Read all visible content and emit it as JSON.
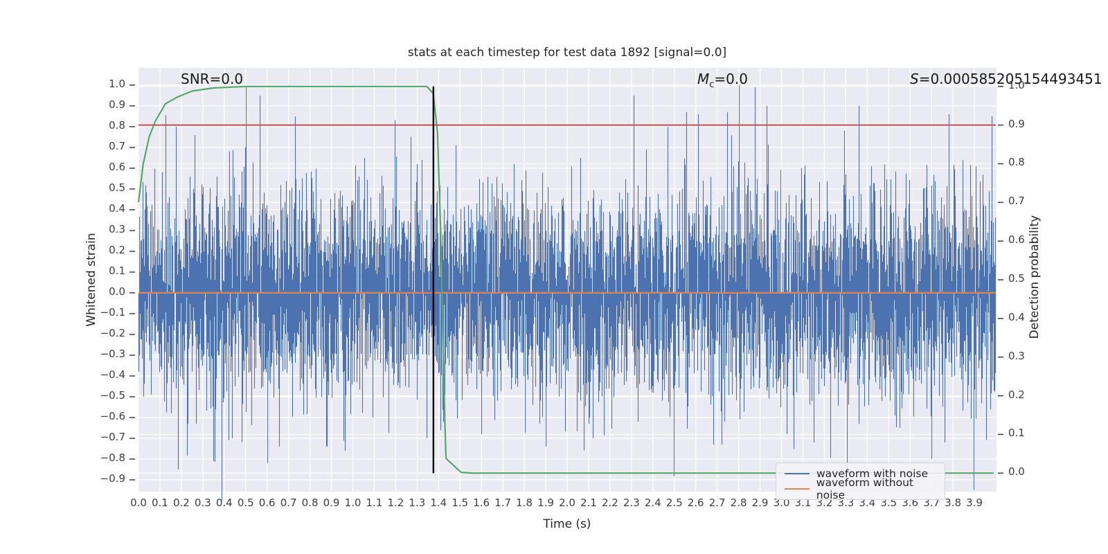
{
  "figure": {
    "title": "stats at each timestep for test data 1892 [signal=0.0]"
  },
  "annotations": {
    "snr": "SNR=0.0",
    "mc_symbol": "M",
    "mc_sub": "c",
    "mc_rest": "=0.0",
    "s_symbol": "S",
    "s_rest": "=0.000585205154493451"
  },
  "axes": {
    "x": {
      "label": "Time (s)",
      "ticks": [
        "0.0",
        "0.1",
        "0.2",
        "0.3",
        "0.4",
        "0.5",
        "0.6",
        "0.7",
        "0.8",
        "0.9",
        "1.0",
        "1.1",
        "1.2",
        "1.3",
        "1.4",
        "1.5",
        "1.6",
        "1.7",
        "1.8",
        "1.9",
        "2.0",
        "2.1",
        "2.2",
        "2.3",
        "2.4",
        "2.5",
        "2.6",
        "2.7",
        "2.8",
        "2.9",
        "3.0",
        "3.1",
        "3.2",
        "3.3",
        "3.4",
        "3.5",
        "3.6",
        "3.7",
        "3.8",
        "3.9"
      ]
    },
    "y_left": {
      "label": "Whitened strain",
      "ticks": [
        "1.0",
        "0.9",
        "0.8",
        "0.7",
        "0.6",
        "0.5",
        "0.4",
        "0.3",
        "0.2",
        "0.1",
        "0.0",
        "−0.1",
        "−0.2",
        "−0.3",
        "−0.4",
        "−0.5",
        "−0.6",
        "−0.7",
        "−0.8",
        "−0.9"
      ]
    },
    "y_right": {
      "label": "Detection probability",
      "ticks": [
        "1.0",
        "0.9",
        "0.8",
        "0.7",
        "0.6",
        "0.5",
        "0.4",
        "0.3",
        "0.2",
        "0.1",
        "0.0"
      ]
    }
  },
  "legend": {
    "items": [
      {
        "label": "waveform with noise",
        "color": "#4C72B0"
      },
      {
        "label": "waveform without noise",
        "color": "#DD8452"
      }
    ]
  },
  "chart_data": {
    "type": "line",
    "title": "stats at each timestep for test data 1892 [signal=0.0]",
    "xlabel": "Time (s)",
    "ylabel_left": "Whitened strain",
    "ylabel_right": "Detection probability",
    "xlim": [
      0.0,
      4.0
    ],
    "strain_ylim": [
      -0.957,
      1.083
    ],
    "prob_ylim": [
      -0.048,
      1.048
    ],
    "grid": true,
    "legend_position": "lower right",
    "colors": {
      "axes_bg": "#EAEAF2",
      "grid": "#FFFFFF",
      "noise": "#4C72B0",
      "signal": "#DD8452",
      "probability": "#55A868",
      "threshold": "#C44E52",
      "marker": "#000000",
      "text": "#262626"
    },
    "series": [
      {
        "name": "waveform with noise",
        "axis": "left",
        "style": "noise",
        "seed": 1892,
        "sigma": 0.25,
        "samples_per_column": 4,
        "approx_range": [
          -0.85,
          1.0
        ],
        "spikes": [
          [
            0.175,
            0.8
          ],
          [
            0.5,
            0.99
          ],
          [
            0.565,
            0.95
          ],
          [
            0.73,
            0.85
          ],
          [
            1.32,
            0.64
          ],
          [
            1.48,
            0.71
          ],
          [
            1.75,
            0.62
          ],
          [
            2.06,
            0.65
          ],
          [
            2.31,
            0.95
          ],
          [
            2.47,
            0.8
          ],
          [
            2.555,
            0.87
          ],
          [
            2.61,
            0.86
          ],
          [
            2.745,
            0.87
          ],
          [
            2.8,
            1.0
          ],
          [
            2.875,
            0.99
          ],
          [
            2.93,
            0.9
          ],
          [
            3.36,
            0.9
          ],
          [
            3.78,
            0.86
          ],
          [
            3.98,
            0.85
          ],
          [
            0.185,
            -0.85
          ],
          [
            0.35,
            -0.81
          ],
          [
            0.435,
            -0.7
          ],
          [
            0.6,
            -0.82
          ],
          [
            0.655,
            -0.74
          ],
          [
            0.875,
            -0.74
          ],
          [
            1.345,
            -0.7
          ],
          [
            1.6,
            -0.68
          ],
          [
            1.9,
            -0.74
          ],
          [
            2.12,
            -0.7
          ],
          [
            2.33,
            -0.62
          ],
          [
            2.72,
            -0.73
          ],
          [
            3.15,
            -0.72
          ],
          [
            3.55,
            -0.65
          ],
          [
            3.7,
            -0.8
          ],
          [
            3.76,
            -0.72
          ]
        ]
      },
      {
        "name": "waveform without noise",
        "axis": "left",
        "style": "flat",
        "value": 0.0
      },
      {
        "name": "detection probability",
        "axis": "right",
        "style": "line",
        "points": [
          [
            0.0,
            0.7
          ],
          [
            0.022,
            0.8
          ],
          [
            0.05,
            0.87
          ],
          [
            0.08,
            0.912
          ],
          [
            0.11,
            0.94
          ],
          [
            0.125,
            0.955
          ],
          [
            0.18,
            0.972
          ],
          [
            0.25,
            0.988
          ],
          [
            0.35,
            0.996
          ],
          [
            0.5,
            1.0
          ],
          [
            1.345,
            1.0
          ],
          [
            1.375,
            0.982
          ],
          [
            1.395,
            0.88
          ],
          [
            1.41,
            0.62
          ],
          [
            1.42,
            0.35
          ],
          [
            1.43,
            0.12
          ],
          [
            1.435,
            0.038
          ],
          [
            1.505,
            0.002
          ],
          [
            1.56,
            0.0
          ],
          [
            3.99,
            0.0
          ]
        ]
      }
    ],
    "threshold_line": {
      "axis": "right",
      "value": 0.9
    },
    "marker_vline": {
      "x": 1.376,
      "prob_range": [
        0.0,
        1.0
      ]
    }
  }
}
